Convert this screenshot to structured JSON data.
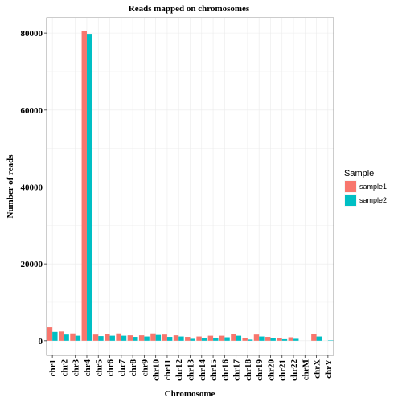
{
  "colors": {
    "sample1": "#F8766D",
    "sample2": "#00BFC4",
    "grid": "#EBEBEB",
    "panel_border": "#7F7F7F"
  },
  "chart_data": {
    "type": "bar",
    "title": "Reads mapped on chromosomes",
    "xlabel": "Chromosome",
    "ylabel": "Number of reads",
    "ylim": [
      -3800,
      84000
    ],
    "yticks": [
      0,
      20000,
      40000,
      60000,
      80000
    ],
    "yticklabels": [
      "0",
      "20000",
      "40000",
      "60000",
      "80000"
    ],
    "grid": true,
    "legend": {
      "title": "Sample",
      "position": "right",
      "entries": [
        "sample1",
        "sample2"
      ]
    },
    "categories": [
      "chr1",
      "chr2",
      "chr3",
      "chr4",
      "chr5",
      "chr6",
      "chr7",
      "chr8",
      "chr9",
      "chr10",
      "chr11",
      "chr12",
      "chr13",
      "chr14",
      "chr15",
      "chr16",
      "chr17",
      "chr18",
      "chr19",
      "chr20",
      "chr21",
      "chr22",
      "chrM",
      "chrX",
      "chrY"
    ],
    "series": [
      {
        "name": "sample1",
        "values": [
          3500,
          2400,
          1900,
          80500,
          1600,
          1700,
          1900,
          1400,
          1400,
          1900,
          1600,
          1400,
          1000,
          1100,
          1300,
          1300,
          1700,
          800,
          1600,
          1000,
          600,
          900,
          0,
          1700,
          0
        ]
      },
      {
        "name": "sample2",
        "values": [
          2300,
          1600,
          1300,
          79800,
          1200,
          1300,
          1300,
          1000,
          1100,
          1500,
          1000,
          1100,
          500,
          700,
          800,
          900,
          1300,
          300,
          1100,
          700,
          400,
          500,
          0,
          1100,
          100
        ]
      }
    ]
  }
}
